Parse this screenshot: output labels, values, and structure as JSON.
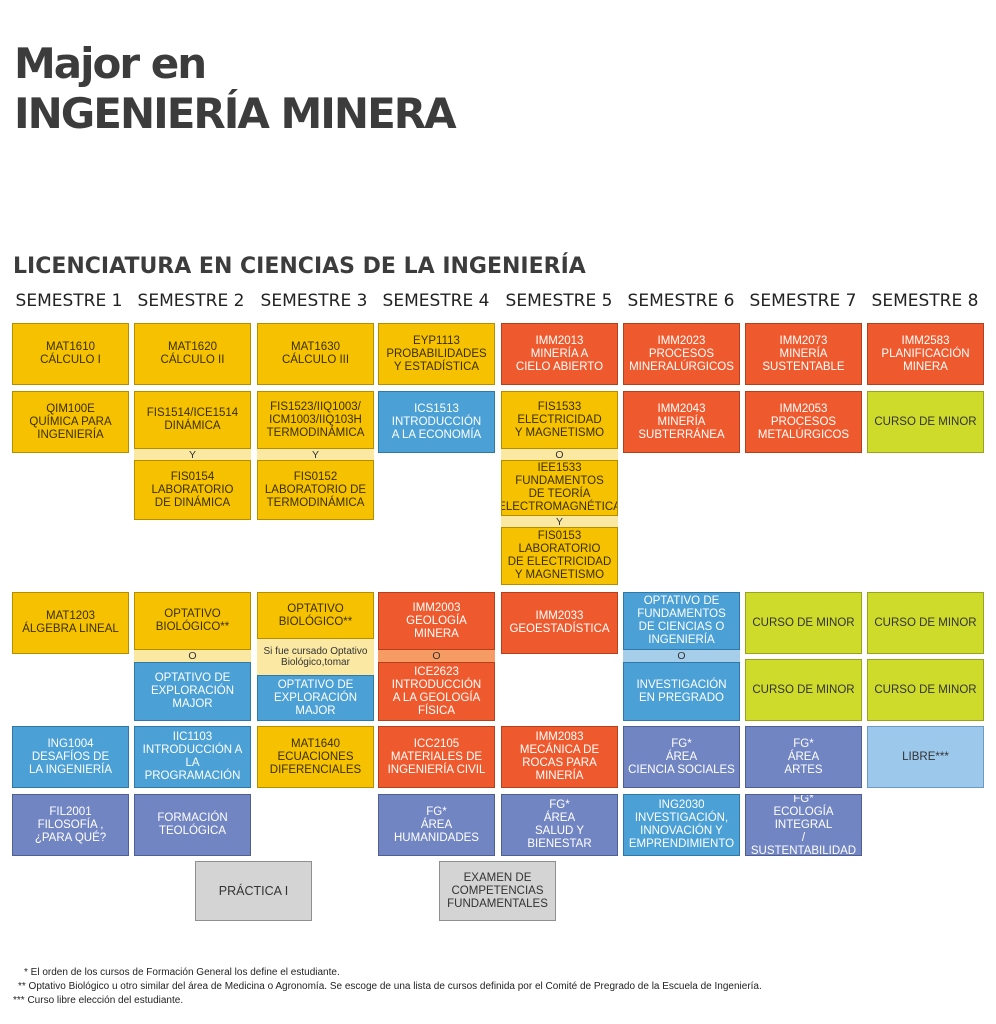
{
  "title_line1": "Major en",
  "title_line2": "INGENIERÍA MINERA",
  "subtitle": "LICENCIATURA EN CIENCIAS DE LA INGENIERÍA",
  "semesters": [
    "SEMESTRE 1",
    "SEMESTRE 2",
    "SEMESTRE 3",
    "SEMESTRE 4",
    "SEMESTRE 5",
    "SEMESTRE 6",
    "SEMESTRE 7",
    "SEMESTRE 8"
  ],
  "courses": {
    "mat1610": "MAT1610\nCÁLCULO I",
    "mat1620": "MAT1620\nCÁLCULO II",
    "mat1630": "MAT1630\nCÁLCULO III",
    "eyp1113": "EYP1113\nPROBABILIDADES\nY ESTADÍSTICA",
    "imm2013": "IMM2013\nMINERÍA A\nCIELO ABIERTO",
    "imm2023": "IMM2023\nPROCESOS\nMINERALÚRGICOS",
    "imm2073": "IMM2073\nMINERÍA\nSUSTENTABLE",
    "imm2583": "IMM2583\nPLANIFICACIÓN\nMINERA",
    "qim100e": "QIM100E\nQUÍMICA PARA\nINGENIERÍA",
    "fis1514": "FIS1514/ICE1514\nDINÁMICA",
    "fis0154": "FIS0154\nLABORATORIO\nDE DINÁMICA",
    "fis1523": "FIS1523/IIQ1003/\nICM1003/IIQ103H\nTERMODINÁMICA",
    "fis0152": "FIS0152\nLABORATORIO DE\nTERMODINÁMICA",
    "ics1513": "ICS1513\nINTRODUCCIÓN\nA LA ECONOMÍA",
    "fis1533": "FIS1533\nELECTRICIDAD\nY MAGNETISMO",
    "iee1533": "IEE1533\nFUNDAMENTOS\nDE TEORÍA\nELECTROMAGNÉTICA",
    "fis0153": "FIS0153\nLABORATORIO\nDE ELECTRICIDAD\nY MAGNETISMO",
    "imm2043": "IMM2043\nMINERÍA\nSUBTERRÁNEA",
    "imm2053": "IMM2053\nPROCESOS\nMETALÚRGICOS",
    "minor1": "CURSO DE MINOR",
    "mat1203": "MAT1203\nÁLGEBRA LINEAL",
    "opt_bio1": "OPTATIVO\nBIOLÓGICO**",
    "opt_exp1": "OPTATIVO DE\nEXPLORACIÓN\nMAJOR",
    "opt_bio2": "OPTATIVO\nBIOLÓGICO**",
    "si_fue": "Si fue cursado Optativo\nBiológico,tomar",
    "opt_exp2": "OPTATIVO DE\nEXPLORACIÓN\nMAJOR",
    "imm2003": "IMM2003\nGEOLOGÍA\nMINERA",
    "ice2623": "ICE2623\nINTRODUCCIÓN\nA LA GEOLOGÍA\nFÍSICA",
    "imm2033": "IMM2033\nGEOESTADÍSTICA",
    "opt_fund": "OPTATIVO DE\nFUNDAMENTOS\nDE CIENCIAS O\nINGENIERÍA",
    "investigacion": "INVESTIGACIÓN\nEN PREGRADO",
    "minor2": "CURSO DE MINOR",
    "minor3": "CURSO DE MINOR",
    "minor4": "CURSO DE MINOR",
    "minor5": "CURSO DE MINOR",
    "ing1004": "ING1004\nDESAFÍOS DE\nLA INGENIERÍA",
    "iic1103": "IIC1103\nINTRODUCCIÓN A\nLA PROGRAMACIÓN",
    "mat1640": "MAT1640\nECUACIONES\nDIFERENCIALES",
    "icc2105": "ICC2105\nMATERIALES DE\nINGENIERÍA CIVIL",
    "imm2083": "IMM2083\nMECÁNICA DE\nROCAS PARA\nMINERÍA",
    "fg_ciencia": "FG*\nÁREA\nCIENCIA SOCIALES",
    "fg_artes": "FG*\nÁREA\nARTES",
    "libre": "LIBRE***",
    "fil2001": "FIL2001\nFILOSOFÍA ,\n¿PARA QUÉ?",
    "formacion": "FORMACIÓN\nTEOLÓGICA",
    "fg_humanidades": "FG*\nÁREA\nHUMANIDADES",
    "fg_salud": "FG*\nÁREA\nSALUD Y BIENESTAR",
    "ing2030": "ING2030\nINVESTIGACIÓN,\nINNOVACIÓN Y\nEMPRENDIMIENTO",
    "fg_ecologia": "FG*\nECOLOGÍA INTEGRAL\n/ SUSTENTABILIDAD",
    "practica": "PRÁCTICA I",
    "examen": "EXAMEN DE\nCOMPETENCIAS\nFUNDAMENTALES"
  },
  "connectors": {
    "y": "Y",
    "o": "O"
  },
  "notes": [
    "* El orden de los cursos de Formación General los define el estudiante.",
    "** Optativo Biológico u otro similar del área de Medicina o Agronomía. Se escoge de una lista de cursos definida por el Comité de Pregrado de la Escuela de Ingeniería.",
    "*** Curso libre elección del estudiante."
  ],
  "colors": {
    "yellow": "#f6c200",
    "orange": "#ee5a2d",
    "blue": "#4ba0d6",
    "lime": "#cfdb2a",
    "purple": "#7285c3",
    "light_blue": "#9cc8ec",
    "gray": "#d4d4d4"
  }
}
